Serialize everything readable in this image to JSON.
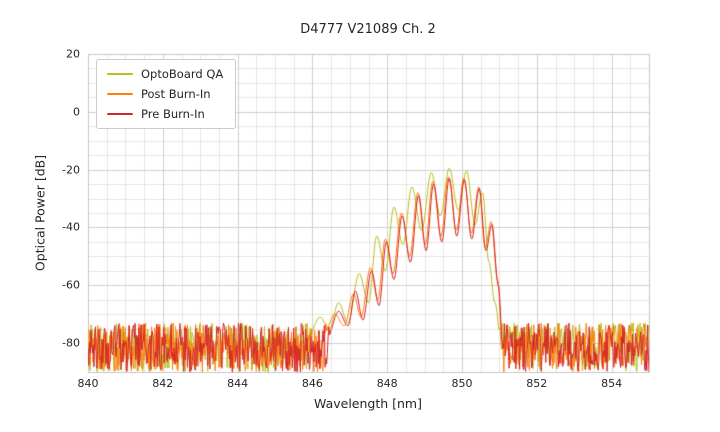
{
  "figure": {
    "title": "D4777 V21089 Ch. 2"
  },
  "chart_data": {
    "type": "line",
    "title": "D4777 V21089 Ch. 2",
    "xlabel": "Wavelength [nm]",
    "ylabel": "Optical Power [dB]",
    "xlim": [
      840,
      855
    ],
    "ylim": [
      -90,
      20
    ],
    "xticks": [
      840,
      842,
      844,
      846,
      848,
      850,
      852,
      854
    ],
    "yticks": [
      20,
      0,
      -20,
      -40,
      -60,
      -80
    ],
    "x_minor_step": 0.5,
    "y_minor_step": 5,
    "grid": true,
    "legend_position": "upper left",
    "noise_floor": {
      "mean": -80,
      "min": -90,
      "max": -73,
      "left_region_end": 846.4,
      "right_region_start": 851.0
    },
    "series": [
      {
        "name": "OptoBoard QA",
        "color": "#bcbd22",
        "peak_power_db": -19.5,
        "envelope": [
          [
            845.9,
            -78
          ],
          [
            846.2,
            -71
          ],
          [
            846.45,
            -75
          ],
          [
            846.7,
            -66
          ],
          [
            846.95,
            -73
          ],
          [
            847.25,
            -56
          ],
          [
            847.5,
            -66
          ],
          [
            847.72,
            -43
          ],
          [
            847.95,
            -55
          ],
          [
            848.18,
            -33
          ],
          [
            848.42,
            -46
          ],
          [
            848.66,
            -26
          ],
          [
            848.92,
            -41
          ],
          [
            849.18,
            -21
          ],
          [
            849.42,
            -36
          ],
          [
            849.66,
            -19.5
          ],
          [
            849.9,
            -34
          ],
          [
            850.12,
            -20.5
          ],
          [
            850.35,
            -39
          ],
          [
            850.55,
            -28
          ],
          [
            850.72,
            -52
          ],
          [
            850.88,
            -66
          ],
          [
            851.05,
            -80
          ]
        ]
      },
      {
        "name": "Post Burn-In",
        "color": "#ff7f0e",
        "peak_power_db": -22.5,
        "envelope": [
          [
            846.3,
            -77
          ],
          [
            846.6,
            -70
          ],
          [
            846.85,
            -74
          ],
          [
            847.1,
            -63
          ],
          [
            847.3,
            -71
          ],
          [
            847.55,
            -54
          ],
          [
            847.75,
            -65
          ],
          [
            847.95,
            -44
          ],
          [
            848.15,
            -56
          ],
          [
            848.38,
            -35
          ],
          [
            848.6,
            -50
          ],
          [
            848.82,
            -28
          ],
          [
            849.02,
            -46
          ],
          [
            849.22,
            -24
          ],
          [
            849.44,
            -43
          ],
          [
            849.64,
            -22.5
          ],
          [
            849.85,
            -41
          ],
          [
            850.05,
            -23
          ],
          [
            850.25,
            -42
          ],
          [
            850.45,
            -26
          ],
          [
            850.62,
            -47
          ],
          [
            850.78,
            -38
          ],
          [
            850.95,
            -58
          ],
          [
            851.08,
            -80
          ]
        ]
      },
      {
        "name": "Pre Burn-In",
        "color": "#d62728",
        "peak_power_db": -23,
        "envelope": [
          [
            846.4,
            -78
          ],
          [
            846.7,
            -69
          ],
          [
            846.95,
            -74
          ],
          [
            847.15,
            -62
          ],
          [
            847.35,
            -72
          ],
          [
            847.58,
            -55
          ],
          [
            847.78,
            -67
          ],
          [
            847.98,
            -45
          ],
          [
            848.18,
            -58
          ],
          [
            848.4,
            -36
          ],
          [
            848.62,
            -52
          ],
          [
            848.84,
            -29
          ],
          [
            849.04,
            -48
          ],
          [
            849.24,
            -25
          ],
          [
            849.46,
            -45
          ],
          [
            849.66,
            -23
          ],
          [
            849.86,
            -43
          ],
          [
            850.06,
            -23.5
          ],
          [
            850.26,
            -44
          ],
          [
            850.46,
            -26.5
          ],
          [
            850.64,
            -48
          ],
          [
            850.8,
            -39
          ],
          [
            850.97,
            -60
          ],
          [
            851.1,
            -82
          ]
        ]
      }
    ]
  }
}
